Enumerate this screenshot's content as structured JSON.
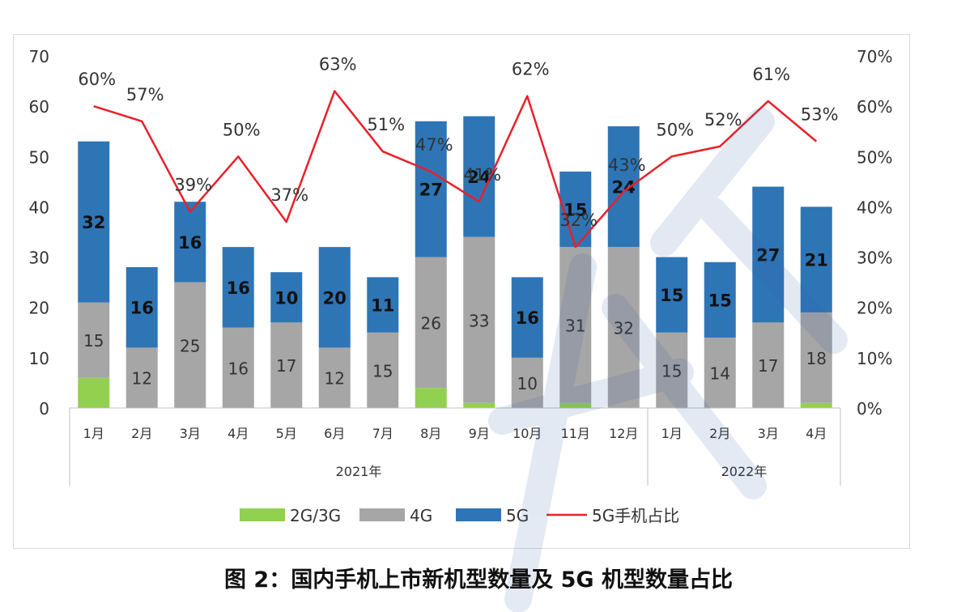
{
  "caption": "图 2：国内手机上市新机型数量及 5G 机型数量占比",
  "colors": {
    "g2g3": "#92d050",
    "g4": "#a6a6a6",
    "g5": "#2e75b6",
    "line": "#e8202a"
  },
  "chart_data": {
    "type": "bar",
    "stacked": true,
    "categories": [
      "1月",
      "2月",
      "3月",
      "4月",
      "5月",
      "6月",
      "7月",
      "8月",
      "9月",
      "10月",
      "11月",
      "12月",
      "1月",
      "2月",
      "3月",
      "4月"
    ],
    "groups": [
      {
        "label": "2021年",
        "count": 12
      },
      {
        "label": "2022年",
        "count": 4
      }
    ],
    "series": [
      {
        "name": "2G/3G",
        "values": [
          6,
          0,
          0,
          0,
          0,
          0,
          0,
          4,
          1,
          0,
          1,
          0,
          0,
          0,
          0,
          1
        ]
      },
      {
        "name": "4G",
        "values": [
          15,
          12,
          25,
          16,
          17,
          12,
          15,
          26,
          33,
          10,
          31,
          32,
          15,
          14,
          17,
          18
        ]
      },
      {
        "name": "5G",
        "values": [
          32,
          16,
          16,
          16,
          10,
          20,
          11,
          27,
          24,
          16,
          15,
          24,
          15,
          15,
          27,
          21
        ]
      }
    ],
    "line_series": {
      "name": "5G手机占比",
      "axis": "right",
      "values": [
        60,
        57,
        39,
        50,
        37,
        63,
        51,
        47,
        41,
        62,
        32,
        43,
        50,
        52,
        61,
        53
      ]
    },
    "line_labels": [
      "60%",
      "57%",
      "39%",
      "50%",
      "37%",
      "63%",
      "51%",
      "47%",
      "41%",
      "62%",
      "32%",
      "43%",
      "50%",
      "52%",
      "61%",
      "53%"
    ],
    "label_4g": [
      "15",
      "12",
      "25",
      "16",
      "17",
      "12",
      "15",
      "26",
      "33",
      "10",
      "31",
      "32",
      "15",
      "14",
      "17",
      "18"
    ],
    "label_5g": [
      "32",
      "16",
      "16",
      "16",
      "10",
      "20",
      "11",
      "27",
      "24",
      "16",
      "15",
      "24",
      "15",
      "15",
      "27",
      "21"
    ],
    "y_left": {
      "ylim": [
        0,
        70
      ],
      "ticks": [
        "0",
        "10",
        "20",
        "30",
        "40",
        "50",
        "60",
        "70"
      ]
    },
    "y_right": {
      "ylim": [
        0,
        70
      ],
      "ticks": [
        "0%",
        "10%",
        "20%",
        "30%",
        "40%",
        "50%",
        "60%",
        "70%"
      ]
    },
    "legend": {
      "position": "bottom",
      "items": [
        "2G/3G",
        "4G",
        "5G",
        "5G手机占比"
      ]
    },
    "grid": false
  }
}
